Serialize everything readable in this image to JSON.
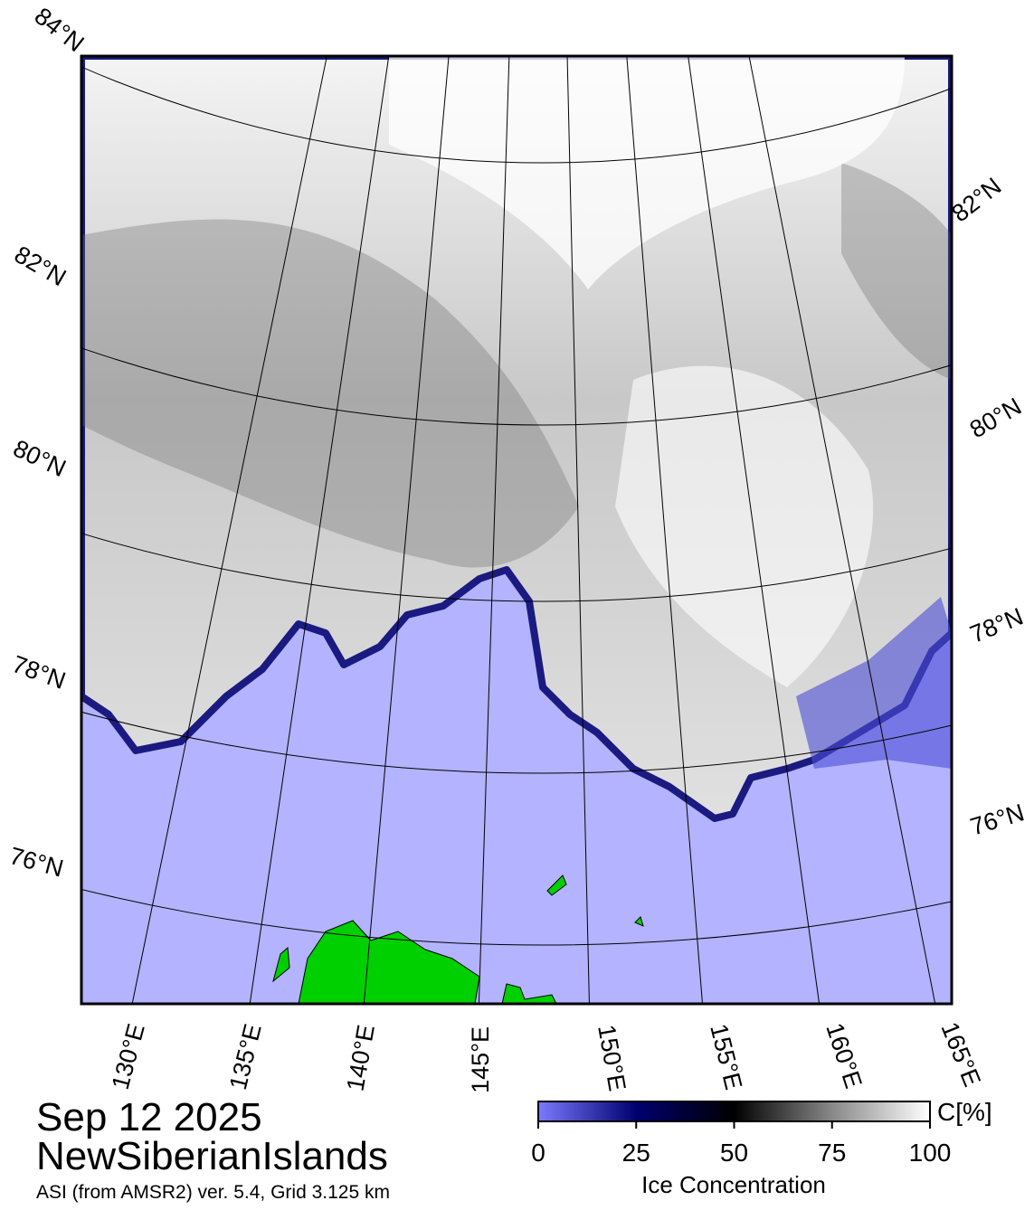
{
  "map": {
    "lat_labels_left": [
      "84°N",
      "82°N",
      "80°N",
      "78°N",
      "76°N"
    ],
    "lat_labels_right": [
      "82°N",
      "80°N",
      "78°N",
      "76°N"
    ],
    "lon_labels": [
      "130°E",
      "135°E",
      "140°E",
      "145°E",
      "150°E",
      "155°E",
      "160°E",
      "165°E"
    ]
  },
  "caption": {
    "date": "Sep 12 2025",
    "region": "NewSiberianIslands",
    "source": "ASI (from AMSR2) ver. 5.4,  Grid 3.125 km"
  },
  "colorbar": {
    "unit": "C[%]",
    "label": "Ice Concentration",
    "ticks": [
      0,
      25,
      50,
      75,
      100
    ]
  }
}
